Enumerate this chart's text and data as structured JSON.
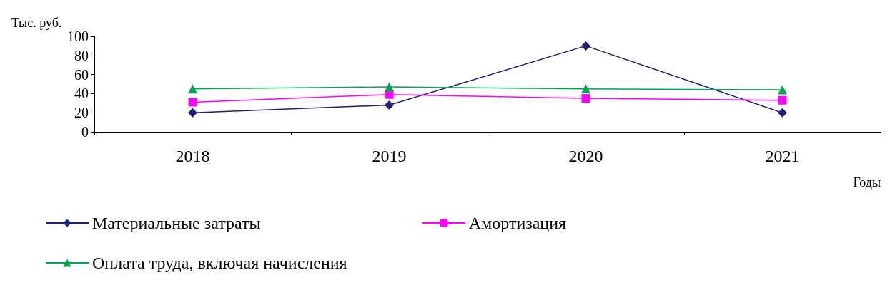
{
  "chart_data": {
    "type": "line",
    "ylabel": "Тыс. руб.",
    "xlabel": "Годы",
    "categories": [
      "2018",
      "2019",
      "2020",
      "2021"
    ],
    "series": [
      {
        "name": "Материальные затраты",
        "color": "#1f1f7a",
        "marker": "diamond",
        "values": [
          20,
          28,
          90,
          20
        ]
      },
      {
        "name": "Амортизация",
        "color": "#ff00ff",
        "marker": "square",
        "values": [
          31,
          39,
          35,
          33
        ]
      },
      {
        "name": "Оплата труда, включая начисления",
        "color": "#00a651",
        "marker": "triangle",
        "values": [
          45,
          47,
          45,
          44
        ]
      }
    ],
    "ylim": [
      0,
      100
    ],
    "yticks": [
      0,
      20,
      40,
      60,
      80,
      100
    ],
    "grid": false,
    "legend": "bottom"
  }
}
